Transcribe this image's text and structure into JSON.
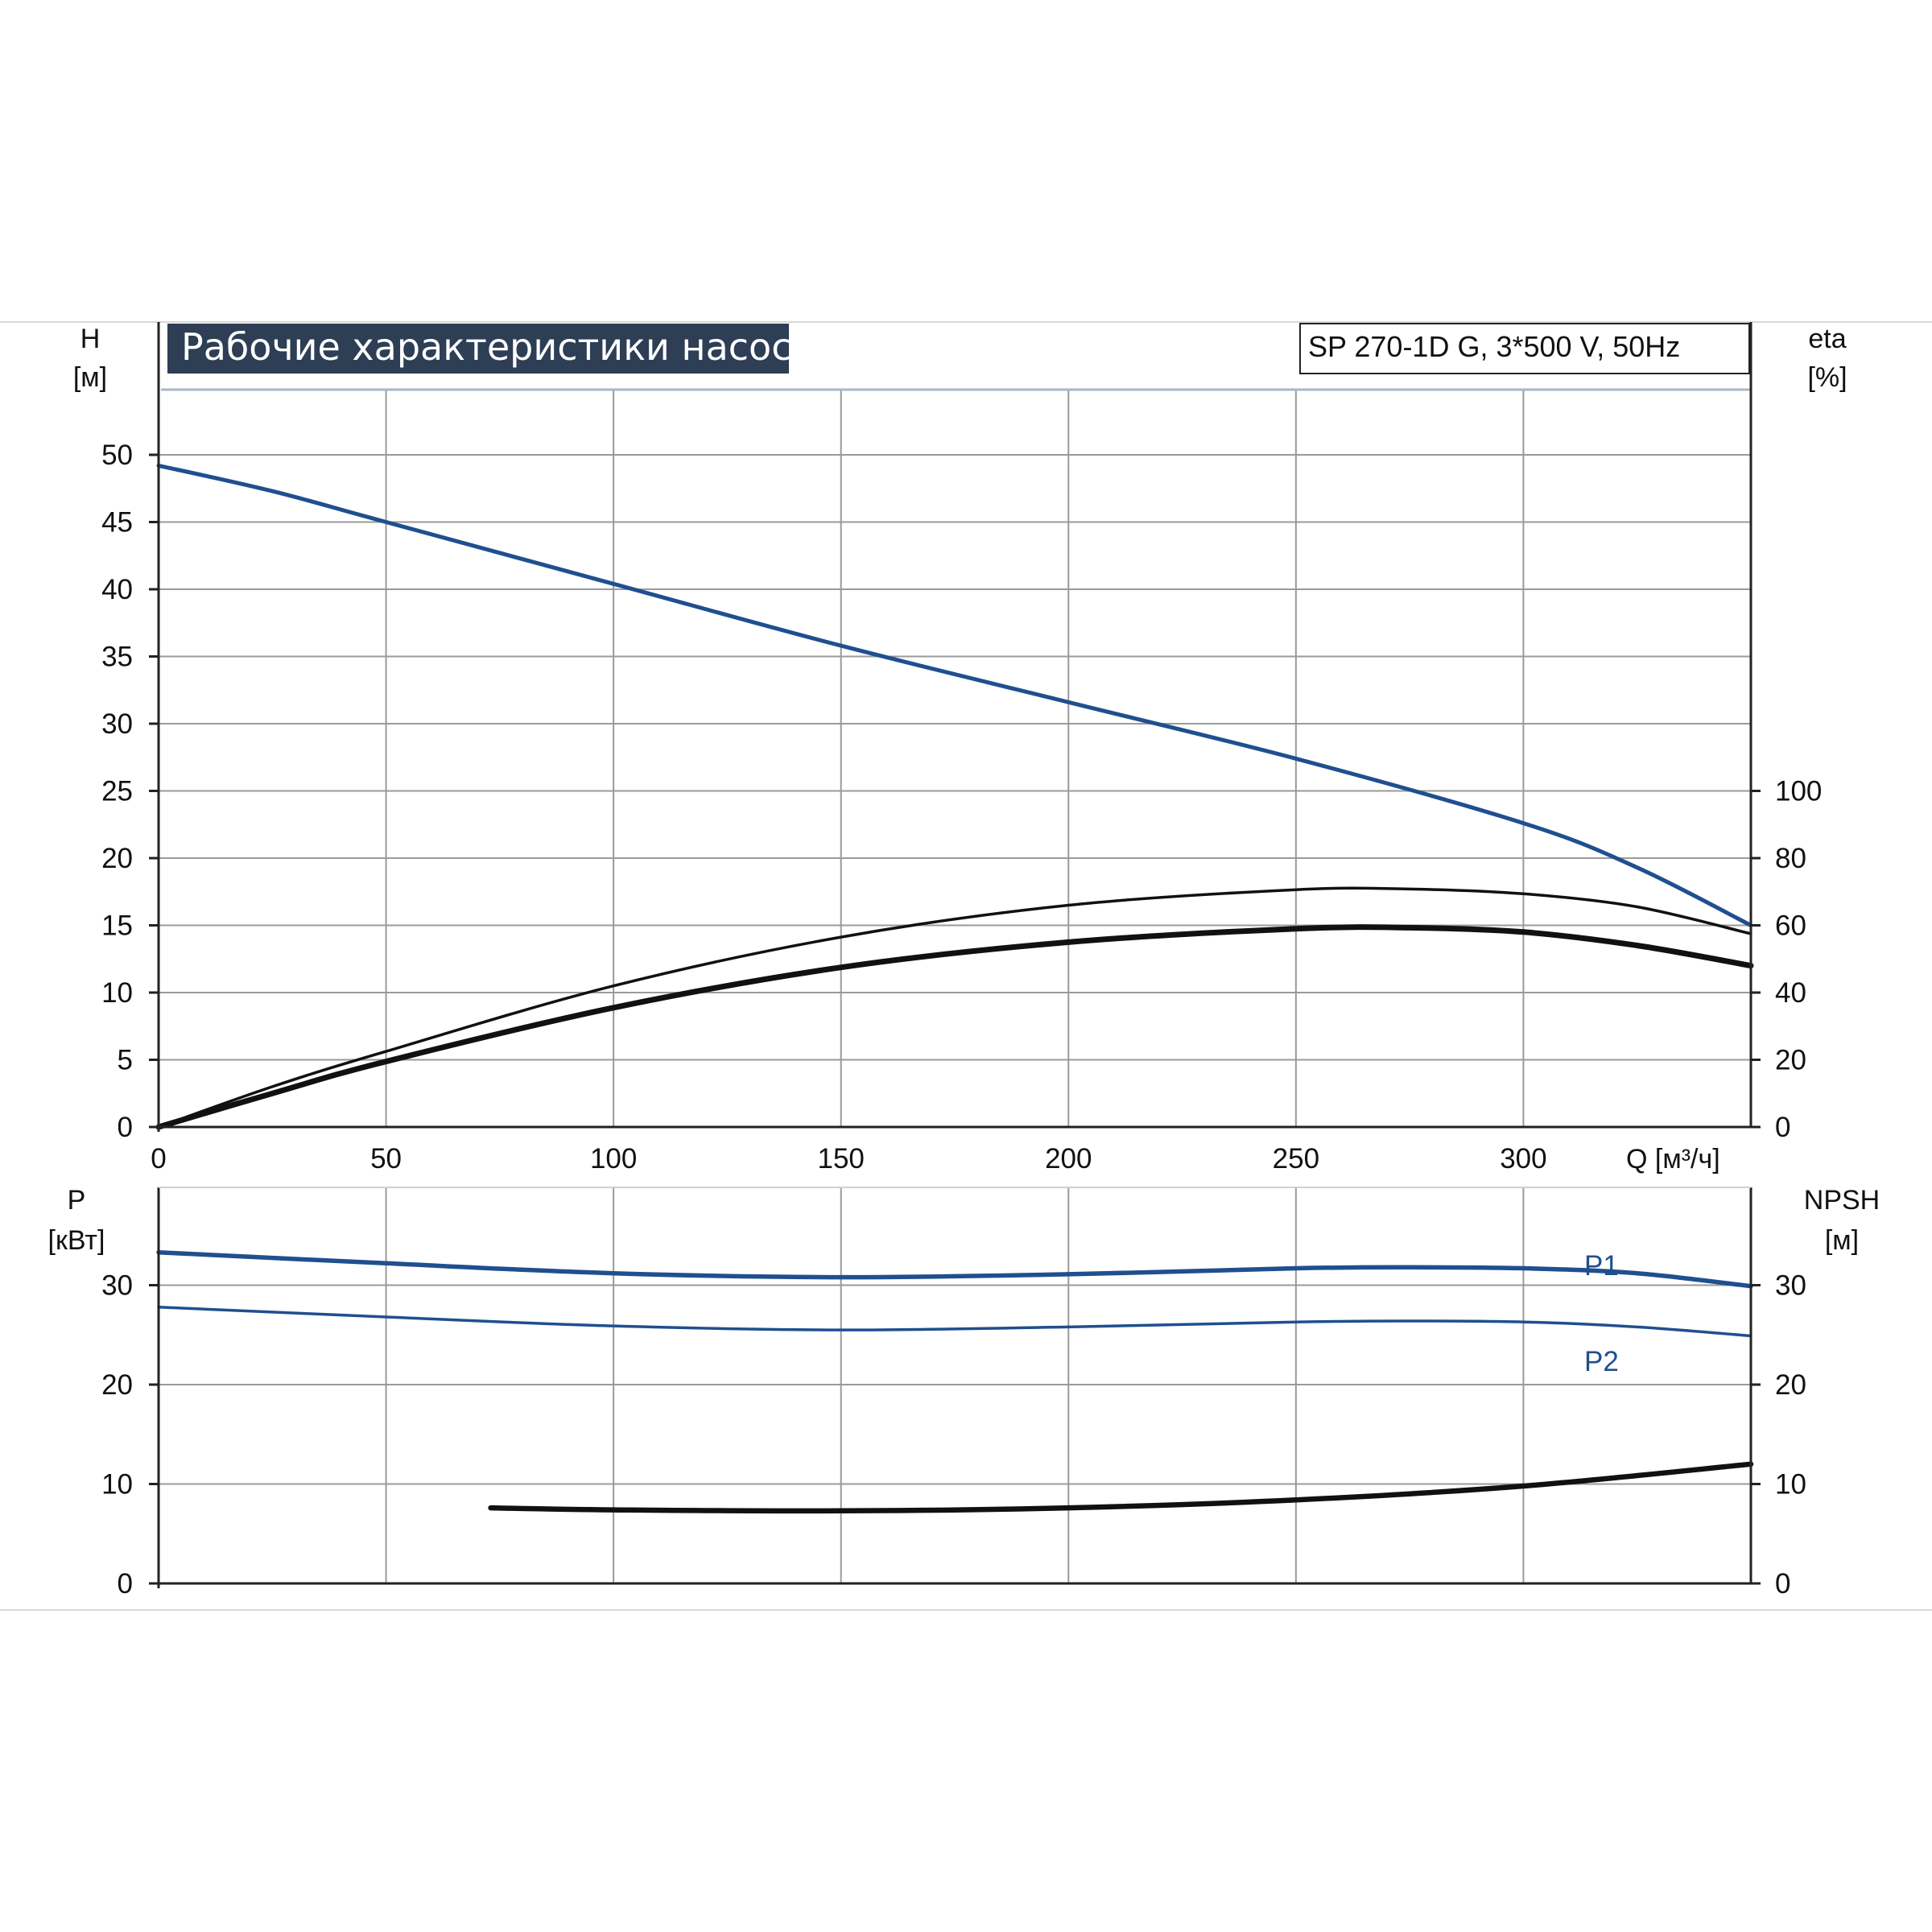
{
  "chart_title": "Рабочие характеристики насоса",
  "model_label": "SP 270-1D G, 3*500 V, 50Hz",
  "colors": {
    "blue": "#1f4f8f",
    "black": "#111111",
    "title_bg": "#2d3e55",
    "grid": "#9a9a9a"
  },
  "x_ticks": [
    "0",
    "50",
    "100",
    "150",
    "200",
    "250",
    "300"
  ],
  "chart_data": [
    {
      "type": "line",
      "xlabel": "Q [м³/ч]",
      "xlim": [
        0,
        350
      ],
      "ylabel_left": [
        "H",
        "[м]"
      ],
      "ylabel_right": [
        "eta",
        "[%]"
      ],
      "ylim_left": [
        0,
        55
      ],
      "ylim_right": [
        0,
        110
      ],
      "y_ticks_left": [
        "0",
        "5",
        "10",
        "15",
        "20",
        "25",
        "30",
        "35",
        "40",
        "45",
        "50"
      ],
      "y_ticks_right": [
        "0",
        "20",
        "40",
        "60",
        "80",
        "100"
      ],
      "grid": true,
      "series": [
        {
          "key": "H",
          "axis": "left",
          "color": "#1f4f8f",
          "x": [
            0,
            25,
            50,
            100,
            150,
            200,
            250,
            300,
            325,
            350
          ],
          "y": [
            49.2,
            47.3,
            45.0,
            40.4,
            35.8,
            31.6,
            27.4,
            22.6,
            19.3,
            15.0
          ]
        },
        {
          "key": "eta_thin",
          "axis": "right",
          "color": "#111111",
          "x": [
            0,
            25,
            50,
            100,
            150,
            200,
            250,
            275,
            300,
            325,
            350
          ],
          "y": [
            0,
            12,
            22.5,
            42,
            56.5,
            66,
            70.6,
            70.8,
            69.4,
            65.5,
            57.5
          ]
        },
        {
          "key": "eta_thick",
          "axis": "right",
          "color": "#111111",
          "x": [
            0,
            25,
            50,
            100,
            150,
            200,
            250,
            275,
            300,
            325,
            350
          ],
          "y": [
            0,
            10,
            19.5,
            35.5,
            47.5,
            55,
            59,
            59.3,
            58,
            54,
            48
          ]
        }
      ]
    },
    {
      "type": "line",
      "xlabel": "",
      "xlim": [
        0,
        350
      ],
      "ylabel_left": [
        "P",
        "[кВт]"
      ],
      "ylabel_right": [
        "NPSH",
        "[м]"
      ],
      "ylim_left": [
        0,
        35
      ],
      "ylim_right": [
        0,
        35
      ],
      "y_ticks_left": [
        "0",
        "10",
        "20",
        "30"
      ],
      "y_ticks_right": [
        "0",
        "10",
        "20",
        "30"
      ],
      "grid": true,
      "series": [
        {
          "key": "P1",
          "name": "P1",
          "axis": "left",
          "color": "#1f4f8f",
          "x": [
            0,
            50,
            100,
            150,
            200,
            250,
            275,
            300,
            325,
            350
          ],
          "y": [
            33.3,
            32.2,
            31.2,
            30.8,
            31.1,
            31.7,
            31.8,
            31.7,
            31.2,
            29.9
          ]
        },
        {
          "key": "P2",
          "name": "P2",
          "axis": "left",
          "color": "#1f4f8f",
          "x": [
            0,
            50,
            100,
            150,
            200,
            250,
            275,
            300,
            325,
            350
          ],
          "y": [
            27.8,
            26.8,
            25.9,
            25.5,
            25.8,
            26.3,
            26.4,
            26.3,
            25.8,
            24.9
          ]
        },
        {
          "key": "NPSH",
          "axis": "right",
          "color": "#111111",
          "x": [
            73,
            100,
            150,
            200,
            250,
            300,
            350
          ],
          "y": [
            7.6,
            7.4,
            7.3,
            7.6,
            8.4,
            9.8,
            12.0
          ]
        }
      ]
    }
  ]
}
